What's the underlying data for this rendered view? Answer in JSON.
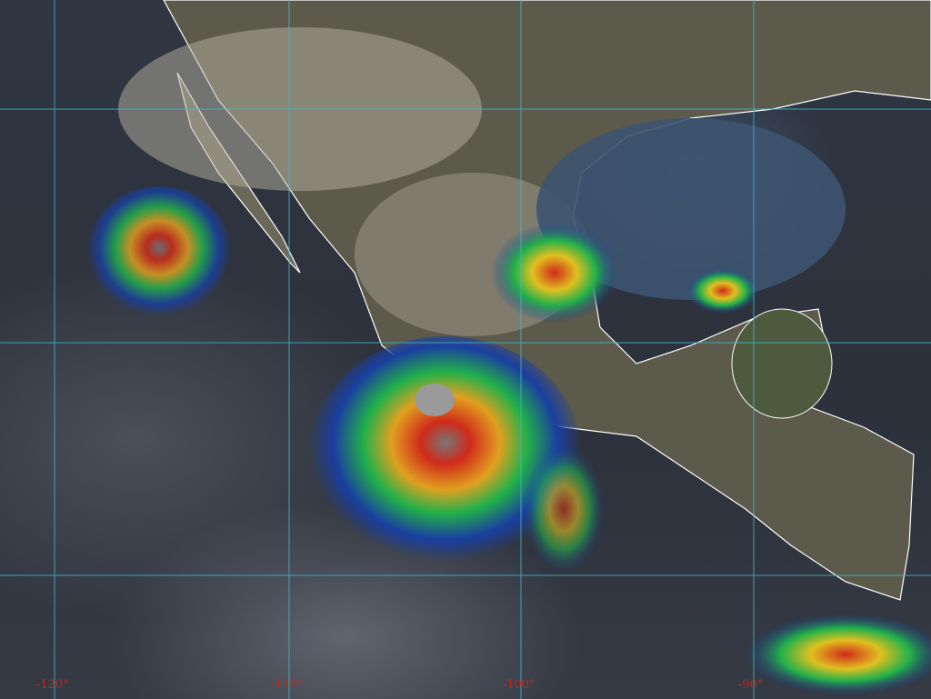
{
  "image": {
    "type": "infrared satellite composite",
    "region": "Mexico, Central America, eastern Pacific"
  },
  "longitude_labels": [
    "-120°",
    "-110°",
    "-100°",
    "-90°"
  ],
  "colors": {
    "gridline": "#3fb8c8",
    "border": "#ffffff",
    "land": "#5a5a4a",
    "ocean": "#2c313b",
    "gulf": "#3d5470",
    "cloud_top_cold": "#d02a1a",
    "cloud_mid": "#22b04a",
    "cloud_low": "#1a3fa0",
    "label": "#c0281e"
  }
}
